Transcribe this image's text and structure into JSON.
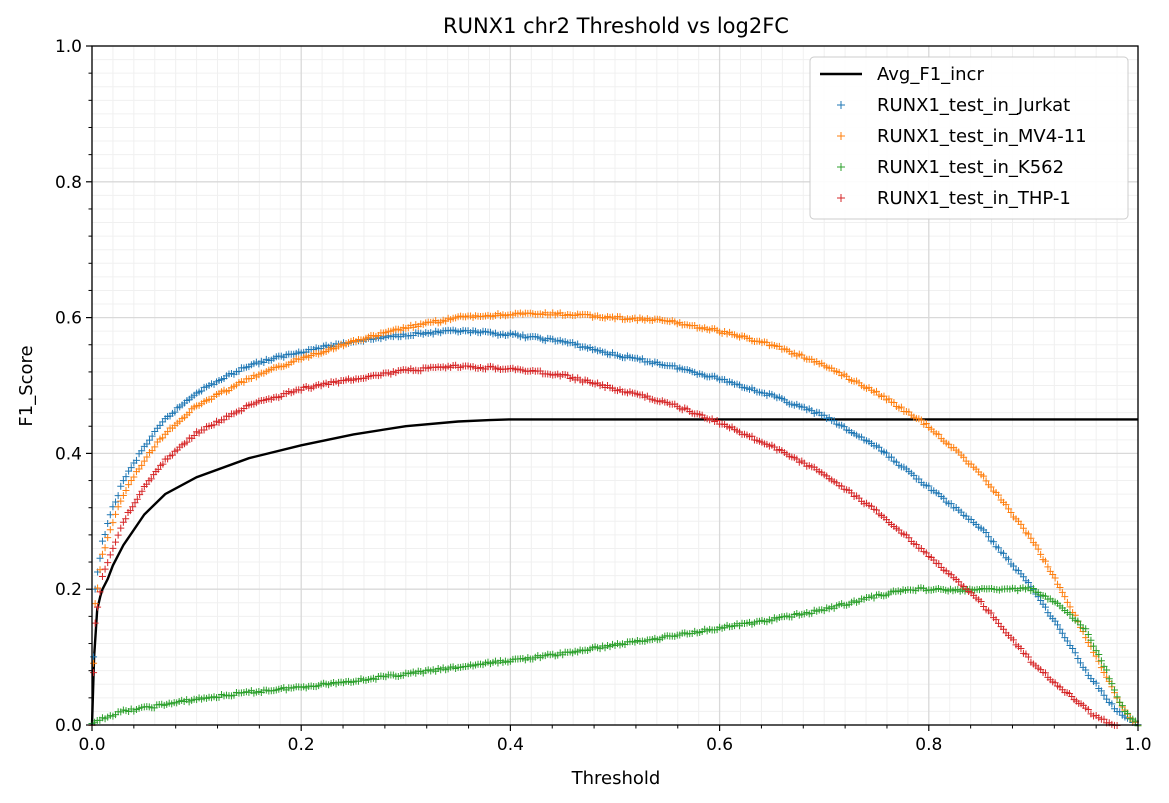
{
  "chart_data": {
    "type": "scatter",
    "title": "RUNX1 chr2 Threshold vs log2FC",
    "xlabel": "Threshold",
    "ylabel": "F1_Score",
    "xlim": [
      0.0,
      1.0
    ],
    "ylim": [
      0.0,
      1.0
    ],
    "x_ticks": [
      "0.0",
      "0.2",
      "0.4",
      "0.6",
      "0.8",
      "1.0"
    ],
    "y_ticks": [
      "0.0",
      "0.2",
      "0.4",
      "0.6",
      "0.8",
      "1.0"
    ],
    "grid": true,
    "minor_grid": true,
    "legend_position": "top-right",
    "series": [
      {
        "name": "Avg_F1_incr",
        "kind": "line",
        "color": "#000000",
        "x": [
          0.0,
          0.002,
          0.005,
          0.008,
          0.01,
          0.015,
          0.02,
          0.03,
          0.05,
          0.07,
          0.1,
          0.15,
          0.2,
          0.25,
          0.3,
          0.35,
          0.38,
          0.4,
          0.5,
          0.6,
          0.7,
          0.8,
          0.9,
          1.0
        ],
        "y": [
          0.0,
          0.1,
          0.17,
          0.19,
          0.2,
          0.215,
          0.235,
          0.265,
          0.31,
          0.34,
          0.365,
          0.393,
          0.412,
          0.428,
          0.44,
          0.447,
          0.449,
          0.45,
          0.45,
          0.45,
          0.45,
          0.45,
          0.45,
          0.45
        ]
      },
      {
        "name": "RUNX1_test_in_Jurkat",
        "kind": "scatter",
        "color": "#1f77b4",
        "x": [
          0.0,
          0.003,
          0.01,
          0.02,
          0.03,
          0.05,
          0.07,
          0.1,
          0.15,
          0.2,
          0.25,
          0.3,
          0.35,
          0.4,
          0.45,
          0.5,
          0.55,
          0.6,
          0.65,
          0.7,
          0.75,
          0.8,
          0.85,
          0.9,
          0.93,
          0.95,
          0.97,
          0.98,
          0.99,
          1.0
        ],
        "y": [
          0.0,
          0.2,
          0.27,
          0.32,
          0.36,
          0.41,
          0.45,
          0.49,
          0.53,
          0.55,
          0.565,
          0.575,
          0.58,
          0.575,
          0.565,
          0.545,
          0.53,
          0.51,
          0.485,
          0.455,
          0.41,
          0.35,
          0.29,
          0.2,
          0.13,
          0.08,
          0.04,
          0.02,
          0.01,
          0.0
        ]
      },
      {
        "name": "RUNX1_test_in_MV4-11",
        "kind": "scatter",
        "color": "#ff7f0e",
        "x": [
          0.0,
          0.003,
          0.01,
          0.02,
          0.03,
          0.05,
          0.07,
          0.1,
          0.15,
          0.2,
          0.25,
          0.3,
          0.35,
          0.4,
          0.45,
          0.5,
          0.55,
          0.6,
          0.65,
          0.7,
          0.75,
          0.8,
          0.85,
          0.9,
          0.93,
          0.95,
          0.97,
          0.98,
          0.99,
          1.0
        ],
        "y": [
          0.0,
          0.18,
          0.25,
          0.3,
          0.34,
          0.39,
          0.43,
          0.47,
          0.51,
          0.54,
          0.565,
          0.585,
          0.6,
          0.605,
          0.605,
          0.6,
          0.595,
          0.58,
          0.56,
          0.53,
          0.49,
          0.44,
          0.37,
          0.27,
          0.19,
          0.13,
          0.07,
          0.04,
          0.015,
          0.0
        ]
      },
      {
        "name": "RUNX1_test_in_K562",
        "kind": "scatter",
        "color": "#2ca02c",
        "x": [
          0.0,
          0.01,
          0.03,
          0.05,
          0.1,
          0.15,
          0.2,
          0.25,
          0.3,
          0.35,
          0.4,
          0.45,
          0.5,
          0.55,
          0.6,
          0.65,
          0.7,
          0.75,
          0.78,
          0.8,
          0.83,
          0.86,
          0.88,
          0.9,
          0.93,
          0.95,
          0.97,
          0.98,
          0.99,
          1.0
        ],
        "y": [
          0.0,
          0.01,
          0.02,
          0.025,
          0.038,
          0.048,
          0.056,
          0.065,
          0.075,
          0.085,
          0.095,
          0.105,
          0.118,
          0.13,
          0.143,
          0.155,
          0.17,
          0.19,
          0.2,
          0.2,
          0.198,
          0.2,
          0.2,
          0.2,
          0.17,
          0.14,
          0.08,
          0.04,
          0.015,
          0.0
        ]
      },
      {
        "name": "RUNX1_test_in_THP-1",
        "kind": "scatter",
        "color": "#d62728",
        "x": [
          0.0,
          0.003,
          0.01,
          0.02,
          0.03,
          0.05,
          0.07,
          0.1,
          0.15,
          0.2,
          0.25,
          0.3,
          0.35,
          0.4,
          0.45,
          0.5,
          0.55,
          0.6,
          0.65,
          0.7,
          0.75,
          0.8,
          0.85,
          0.9,
          0.93,
          0.95,
          0.96,
          0.97,
          0.98
        ],
        "y": [
          0.0,
          0.15,
          0.22,
          0.26,
          0.3,
          0.35,
          0.39,
          0.43,
          0.47,
          0.495,
          0.51,
          0.522,
          0.528,
          0.525,
          0.515,
          0.495,
          0.475,
          0.445,
          0.41,
          0.37,
          0.315,
          0.25,
          0.18,
          0.09,
          0.05,
          0.025,
          0.012,
          0.005,
          0.0
        ]
      }
    ]
  }
}
